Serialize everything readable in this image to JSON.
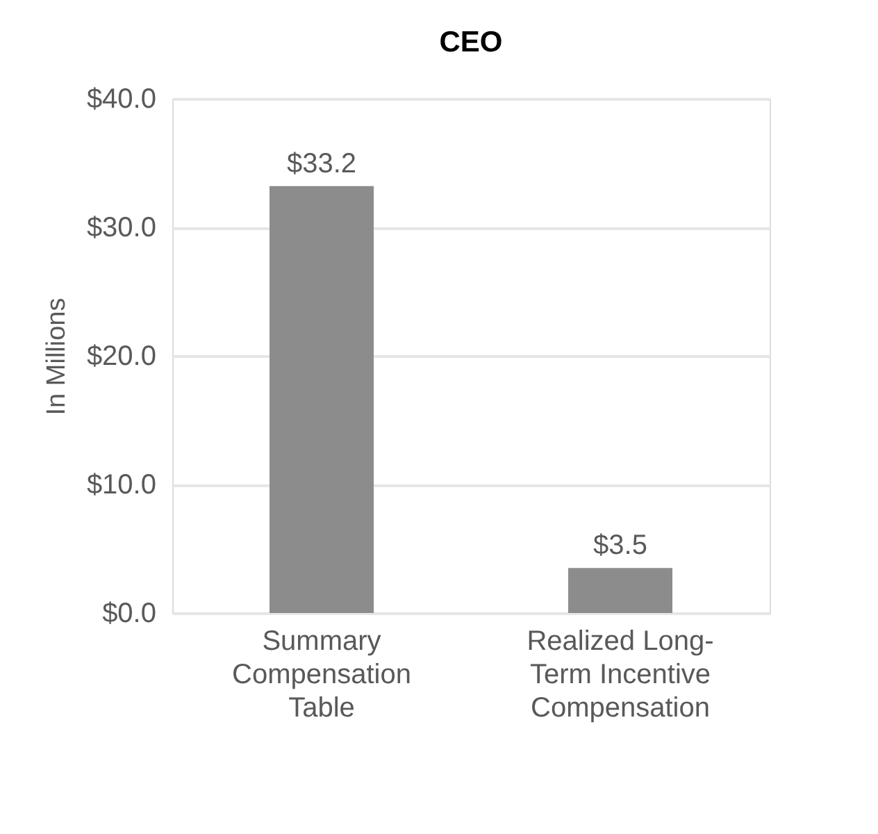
{
  "chart_data": {
    "type": "bar",
    "title": "CEO",
    "ylabel": "In Millions",
    "categories": [
      "Summary Compensation Table",
      "Realized Long-Term Incentive Compensation"
    ],
    "values": [
      33.2,
      3.5
    ],
    "value_labels": [
      "$33.2",
      "$3.5"
    ],
    "color": "#8c8c8c",
    "ylim": [
      0,
      40
    ],
    "yticks": [
      {
        "value": 0,
        "label": "$0.0"
      },
      {
        "value": 10,
        "label": "$10.0"
      },
      {
        "value": 20,
        "label": "$20.0"
      },
      {
        "value": 30,
        "label": "$30.0"
      },
      {
        "value": 40,
        "label": "$40.0"
      }
    ],
    "grid": "y"
  }
}
